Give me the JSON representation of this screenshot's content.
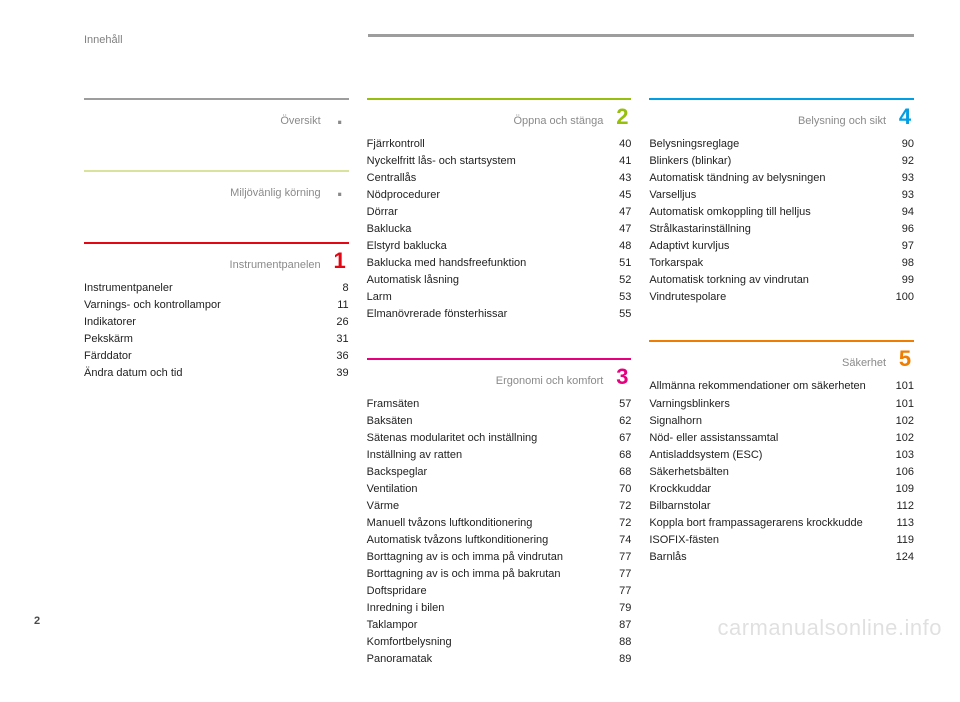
{
  "header": {
    "title": "Innehåll"
  },
  "page_number": "2",
  "watermark": "carmanualsonline.info",
  "columns": [
    {
      "sections": [
        {
          "rule_color": "#9d9d9d",
          "title": "Översikt",
          "num": ".",
          "num_color": "#8a8a8a",
          "items": []
        },
        {
          "rule_color": "#d9e39b",
          "title": "Miljövänlig körning",
          "num": ".",
          "num_color": "#8a8a8a",
          "items": []
        },
        {
          "rule_color": "#e30613",
          "title": "Instrumentpanelen",
          "num": "1",
          "num_color": "#e30613",
          "items": [
            {
              "label": "Instrumentpaneler",
              "page": "8"
            },
            {
              "label": "Varnings- och kontrollampor",
              "page": "11"
            },
            {
              "label": "Indikatorer",
              "page": "26"
            },
            {
              "label": "Pekskärm",
              "page": "31"
            },
            {
              "label": "Färddator",
              "page": "36"
            },
            {
              "label": "Ändra datum och tid",
              "page": "39"
            }
          ]
        }
      ]
    },
    {
      "sections": [
        {
          "rule_color": "#97bf0d",
          "title": "Öppna och stänga",
          "num": "2",
          "num_color": "#97bf0d",
          "items": [
            {
              "label": "Fjärrkontroll",
              "page": "40"
            },
            {
              "label": "Nyckelfritt lås- och startsystem",
              "page": "41"
            },
            {
              "label": "Centrallås",
              "page": "43"
            },
            {
              "label": "Nödprocedurer",
              "page": "45"
            },
            {
              "label": "Dörrar",
              "page": "47"
            },
            {
              "label": "Baklucka",
              "page": "47"
            },
            {
              "label": "Elstyrd baklucka",
              "page": "48"
            },
            {
              "label": "Baklucka med handsfreefunktion",
              "page": "51"
            },
            {
              "label": "Automatisk låsning",
              "page": "52"
            },
            {
              "label": "Larm",
              "page": "53"
            },
            {
              "label": "Elmanövrerade fönsterhissar",
              "page": "55"
            }
          ]
        },
        {
          "rule_color": "#e6007e",
          "title": "Ergonomi och komfort",
          "num": "3",
          "num_color": "#e6007e",
          "items": [
            {
              "label": "Framsäten",
              "page": "57"
            },
            {
              "label": "Baksäten",
              "page": "62"
            },
            {
              "label": "Sätenas modularitet och inställning",
              "page": "67"
            },
            {
              "label": "Inställning av ratten",
              "page": "68"
            },
            {
              "label": "Backspeglar",
              "page": "68"
            },
            {
              "label": "Ventilation",
              "page": "70"
            },
            {
              "label": "Värme",
              "page": "72"
            },
            {
              "label": "Manuell tvåzons luftkonditionering",
              "page": "72"
            },
            {
              "label": "Automatisk tvåzons luftkonditionering",
              "page": "74"
            },
            {
              "label": "Borttagning av is och imma på vindrutan",
              "page": "77"
            },
            {
              "label": "Borttagning av is och imma på bakrutan",
              "page": "77"
            },
            {
              "label": "Doftspridare",
              "page": "77"
            },
            {
              "label": "Inredning i bilen",
              "page": "79"
            },
            {
              "label": "Taklampor",
              "page": "87"
            },
            {
              "label": "Komfortbelysning",
              "page": "88"
            },
            {
              "label": "Panoramatak",
              "page": "89"
            }
          ]
        }
      ]
    },
    {
      "sections": [
        {
          "rule_color": "#009fe3",
          "title": "Belysning och sikt",
          "num": "4",
          "num_color": "#009fe3",
          "items": [
            {
              "label": "Belysningsreglage",
              "page": "90"
            },
            {
              "label": "Blinkers (blinkar)",
              "page": "92"
            },
            {
              "label": "Automatisk tändning av belysningen",
              "page": "93"
            },
            {
              "label": "Varselljus",
              "page": "93"
            },
            {
              "label": "Automatisk omkoppling till helljus",
              "page": "94"
            },
            {
              "label": "Strålkastarinställning",
              "page": "96"
            },
            {
              "label": "Adaptivt kurvljus",
              "page": "97"
            },
            {
              "label": "Torkarspak",
              "page": "98"
            },
            {
              "label": "Automatisk torkning av vindrutan",
              "page": "99"
            },
            {
              "label": "Vindrutespolare",
              "page": "100"
            }
          ]
        },
        {
          "rule_color": "#ef7d00",
          "title": "Säkerhet",
          "num": "5",
          "num_color": "#ef7d00",
          "items": [
            {
              "label": "Allmänna rekommendationer om säkerheten",
              "page": "101"
            },
            {
              "label": "Varningsblinkers",
              "page": "101"
            },
            {
              "label": "Signalhorn",
              "page": "102"
            },
            {
              "label": "Nöd- eller assistanssamtal",
              "page": "102"
            },
            {
              "label": "Antisladdsystem (ESC)",
              "page": "103"
            },
            {
              "label": "Säkerhetsbälten",
              "page": "106"
            },
            {
              "label": "Krockkuddar",
              "page": "109"
            },
            {
              "label": "Bilbarnstolar",
              "page": "112"
            },
            {
              "label": "Koppla bort frampassagerarens krockkudde",
              "page": "113"
            },
            {
              "label": "ISOFIX-fästen",
              "page": "119"
            },
            {
              "label": "Barnlås",
              "page": "124"
            }
          ]
        }
      ]
    }
  ]
}
